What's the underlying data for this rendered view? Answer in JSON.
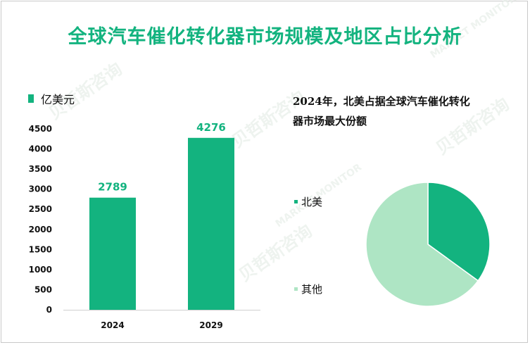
{
  "chart_data": [
    {
      "type": "bar",
      "title": "全球汽车催化转化器市场规模及地区占比分析",
      "legend": "亿美元",
      "categories": [
        "2024",
        "2029"
      ],
      "values": [
        2789,
        4276
      ],
      "data_labels": [
        "2789",
        "4276"
      ],
      "ylim": [
        0,
        4500
      ],
      "yticks": [
        "0",
        "500",
        "1000",
        "1500",
        "2000",
        "2500",
        "3000",
        "3500",
        "4000",
        "4500"
      ],
      "color": "#13b37f"
    },
    {
      "type": "pie",
      "title": "2024年，北美占据全球汽车催化转化器市场最大份额",
      "title_lines": [
        "2024年，北美占据全球汽车催化转化",
        "器市场最大份额"
      ],
      "slices": [
        {
          "label": "北美",
          "value": 35,
          "color": "#13b37f"
        },
        {
          "label": "其他",
          "value": 65,
          "color": "#aee5c4"
        }
      ]
    }
  ],
  "watermark": {
    "cn": "贝哲斯咨询",
    "en": "MARKET MONITOR"
  }
}
